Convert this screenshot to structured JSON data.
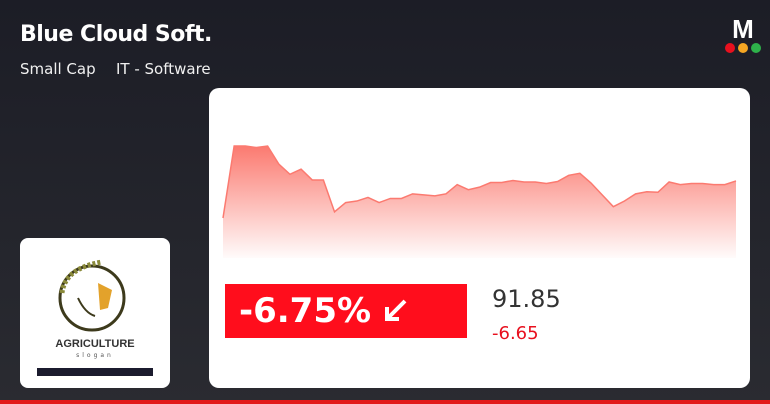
{
  "header": {
    "title": "Blue Cloud Soft.",
    "cap": "Small Cap",
    "sector": "IT - Software"
  },
  "brand": {
    "logo_letter": "M",
    "dot_colors": [
      "#e8101e",
      "#f5a623",
      "#2eb24a"
    ]
  },
  "thumbnail": {
    "headline": "AGRICULTURE",
    "tagline": "slogan"
  },
  "quote": {
    "change_percent": "-6.75%",
    "direction": "down",
    "price": "91.85",
    "change": "-6.65",
    "colors": {
      "negative": "#ff0d1c",
      "area": "#fb7a70"
    }
  },
  "chart_data": {
    "type": "area",
    "values": [
      5,
      145,
      145,
      142,
      145,
      110,
      90,
      100,
      79,
      79,
      17,
      35,
      38,
      45,
      35,
      43,
      43,
      52,
      50,
      48,
      52,
      70,
      60,
      65,
      74,
      74,
      78,
      75,
      75,
      72,
      76,
      88,
      92,
      73,
      50,
      27,
      38,
      52,
      56,
      55,
      75,
      70,
      72,
      72,
      70,
      70,
      77
    ]
  }
}
